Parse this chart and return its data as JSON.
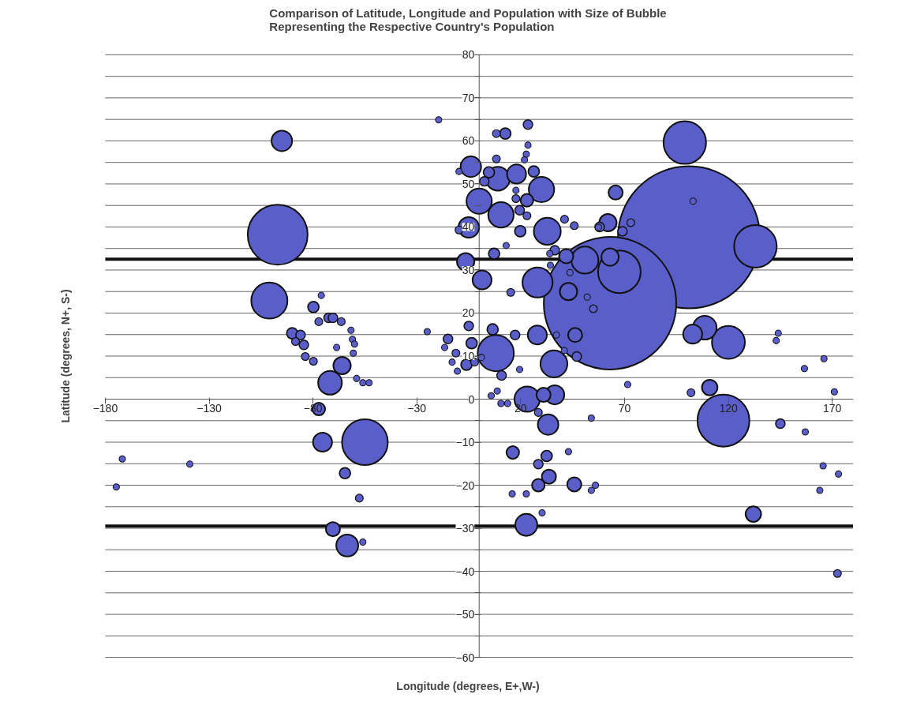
{
  "chart_data": {
    "type": "bubble",
    "title": "Comparison of Latitude, Longitude and Population with Size of Bubble Representing the Respective Country's Population",
    "xlabel": "Longitude (degrees, E+,W-)",
    "ylabel": "Latitude (degrees, N+, S-)",
    "xlim": [
      -180,
      180
    ],
    "ylim": [
      -60,
      80
    ],
    "xticks": [
      -180,
      -130,
      -80,
      -30,
      20,
      70,
      120,
      170
    ],
    "yticks": [
      -60,
      {
        "value": -55,
        "label": null
      },
      -50,
      {
        "value": -45,
        "label": null
      },
      -40,
      {
        "value": -35,
        "label": null
      },
      -30,
      {
        "value": -25,
        "label": null
      },
      -20,
      {
        "value": -15,
        "label": null
      },
      -10,
      {
        "value": -5,
        "label": null
      },
      0,
      {
        "value": 5,
        "label": null
      },
      10,
      {
        "value": 15,
        "label": null
      },
      20,
      {
        "value": 25,
        "label": null
      },
      30,
      {
        "value": 35,
        "label": null
      },
      40,
      {
        "value": 45,
        "label": null
      },
      50,
      {
        "value": 55,
        "label": null
      },
      60,
      {
        "value": 65,
        "label": null
      },
      70,
      {
        "value": 75,
        "label": null
      },
      80
    ],
    "grid": "y",
    "ref_lines": [
      {
        "axis": "y",
        "value": 32.5,
        "label": null,
        "color": "#111111"
      },
      {
        "axis": "y",
        "value": -29.5,
        "label": null,
        "color": "#111111"
      }
    ],
    "series": [
      {
        "color": "#5a5ec8",
        "x": [
          101,
          63,
          -97,
          -95,
          -101,
          -55,
          117.6,
          99,
          133,
          67.5,
          8,
          120,
          108.6,
          102.8,
          63,
          65.7,
          62,
          58,
          69,
          73,
          103,
          111,
          102,
          145,
          132,
          172.5,
          144,
          143,
          156.6,
          166,
          171,
          157,
          165.6,
          173,
          164,
          71.5,
          54,
          56,
          54,
          52,
          55,
          -79.8,
          -76,
          -77.2,
          -72.5,
          -70.4,
          -66.4,
          -90,
          -86,
          -88.4,
          -84.4,
          -83.7,
          -79.8,
          -66,
          -71.8,
          -77.2,
          -75.4,
          -64.6,
          -57.7,
          -70.4,
          -63.5,
          -56,
          -61.7,
          -61,
          -60,
          -60.6,
          -68.6,
          -59,
          -56,
          -53,
          -174.7,
          -171.8,
          -139.3,
          -19.5,
          -25,
          -4,
          -9.7,
          2.5,
          4.7,
          9,
          8.3,
          8.3,
          12.6,
          23.5,
          23.5,
          22.7,
          21.8,
          18,
          26.3,
          30,
          0,
          10.5,
          17.7,
          17.7,
          23,
          19.5,
          23,
          19.8,
          -5,
          -9.7,
          32.8,
          41.1,
          45.8,
          57.4,
          7.2,
          13,
          -6.5,
          1.4,
          28.1,
          36.4,
          34,
          34.3,
          41.9,
          50.9,
          43,
          43.7,
          15.2,
          -5,
          -15,
          -16.6,
          -3.6,
          6.5,
          17.3,
          28,
          37.2,
          46.2,
          47,
          36,
          -11.2,
          -13,
          -10.5,
          -6.1,
          -2.2,
          1.1,
          10.8,
          19.5,
          41,
          5.8,
          8.7,
          10.5,
          13.7,
          23.1,
          31,
          36.4,
          28.5,
          33.2,
          16.2,
          32.5,
          28.5,
          33.6,
          28.5,
          45.8,
          15.9,
          22.7,
          30.3,
          22.7,
          43
        ],
        "values": [
          37.6,
          22.3,
          38.2,
          60,
          22.9,
          -10,
          -5,
          59.6,
          35.5,
          29.6,
          10.7,
          13.2,
          16.6,
          15.1,
          33,
          48,
          41,
          40,
          39,
          41,
          46,
          2.7,
          1.5,
          -5.7,
          -26.7,
          -40.5,
          15.3,
          13.6,
          7.1,
          9.4,
          1.7,
          -7.6,
          -15.5,
          -17.4,
          -21.2,
          3.4,
          -4.4,
          -20,
          -21.2,
          23.7,
          21,
          21.4,
          24.1,
          18,
          18.9,
          18.9,
          18,
          15.3,
          14.9,
          13.4,
          12.6,
          9.9,
          8.8,
          7.8,
          3.8,
          -2.3,
          -10,
          -17.2,
          -23,
          -30.2,
          -34,
          -33.2,
          16,
          13.9,
          12.8,
          10.7,
          12,
          4.8,
          3.8,
          3.8,
          -20.4,
          -13.9,
          -15.1,
          64.9,
          15.7,
          54,
          52.9,
          50.6,
          52.7,
          51.2,
          55.8,
          61.7,
          61.7,
          63.8,
          59,
          56.9,
          55.6,
          52.3,
          52.9,
          48.7,
          46,
          42.8,
          48.5,
          46.6,
          46.2,
          43.9,
          42.6,
          39,
          39.9,
          39.3,
          39,
          41.8,
          40.3,
          39.9,
          33.8,
          35.7,
          31.9,
          27.7,
          27.1,
          34.6,
          33.8,
          31.1,
          33.2,
          32.3,
          25,
          29.4,
          24.8,
          17,
          14,
          12,
          13,
          16.2,
          14.9,
          14.9,
          14.9,
          14.9,
          9.9,
          8.2,
          10.7,
          8.6,
          6.5,
          8,
          8.6,
          9.7,
          5.5,
          6.9,
          11.3,
          0.8,
          1.9,
          -1,
          -1,
          0,
          1,
          1,
          -3.1,
          -5.9,
          -12.4,
          -13.2,
          -15.1,
          -18,
          -20,
          -19.8,
          -22,
          -22,
          -26.4,
          -29.2,
          -12.2
        ],
        "sizes": [
          1,
          0.87,
          0.178,
          0.021,
          0.065,
          0.104,
          0.134,
          0.09,
          0.09,
          0.09,
          0.065,
          0.054,
          0.028,
          0.018,
          0.015,
          0.01,
          0.015,
          0.0044,
          0.0044,
          0.003,
          0.002,
          0.012,
          0.003,
          0.0044,
          0.012,
          0.003,
          0.002,
          0.002,
          0.002,
          0.002,
          0.002,
          0.002,
          0.002,
          0.002,
          0.002,
          0.002,
          0.002,
          0.002,
          0.002,
          0.002,
          0.003,
          0.006,
          0.002,
          0.003,
          0.0044,
          0.0044,
          0.003,
          0.006,
          0.0044,
          0.003,
          0.0044,
          0.003,
          0.003,
          0.015,
          0.028,
          0.008,
          0.018,
          0.006,
          0.003,
          0.01,
          0.024,
          0.002,
          0.002,
          0.002,
          0.002,
          0.002,
          0.002,
          0.002,
          0.002,
          0.002,
          0.002,
          0.002,
          0.002,
          0.002,
          0.002,
          0.021,
          0.002,
          0.0044,
          0.006,
          0.028,
          0.003,
          0.003,
          0.006,
          0.0044,
          0.002,
          0.002,
          0.002,
          0.018,
          0.006,
          0.032,
          0.032,
          0.032,
          0.002,
          0.003,
          0.008,
          0.0044,
          0.003,
          0.006,
          0.021,
          0.003,
          0.036,
          0.003,
          0.003,
          0.002,
          0.006,
          0.002,
          0.015,
          0.018,
          0.045,
          0.0044,
          0.002,
          0.002,
          0.01,
          0.036,
          0.015,
          0.002,
          0.003,
          0.0044,
          0.0044,
          0.002,
          0.006,
          0.006,
          0.0044,
          0.018,
          0.002,
          0.01,
          0.0044,
          0.036,
          0.003,
          0.002,
          0.002,
          0.006,
          0.003,
          0.002,
          0.0044,
          0.002,
          0.002,
          0.002,
          0.002,
          0.002,
          0.002,
          0.032,
          0.01,
          0.018,
          0.003,
          0.021,
          0.008,
          0.006,
          0.0044,
          0.01,
          0.008,
          0.01,
          0.002,
          0.002,
          0.002,
          0.024,
          0.002
        ]
      }
    ]
  }
}
